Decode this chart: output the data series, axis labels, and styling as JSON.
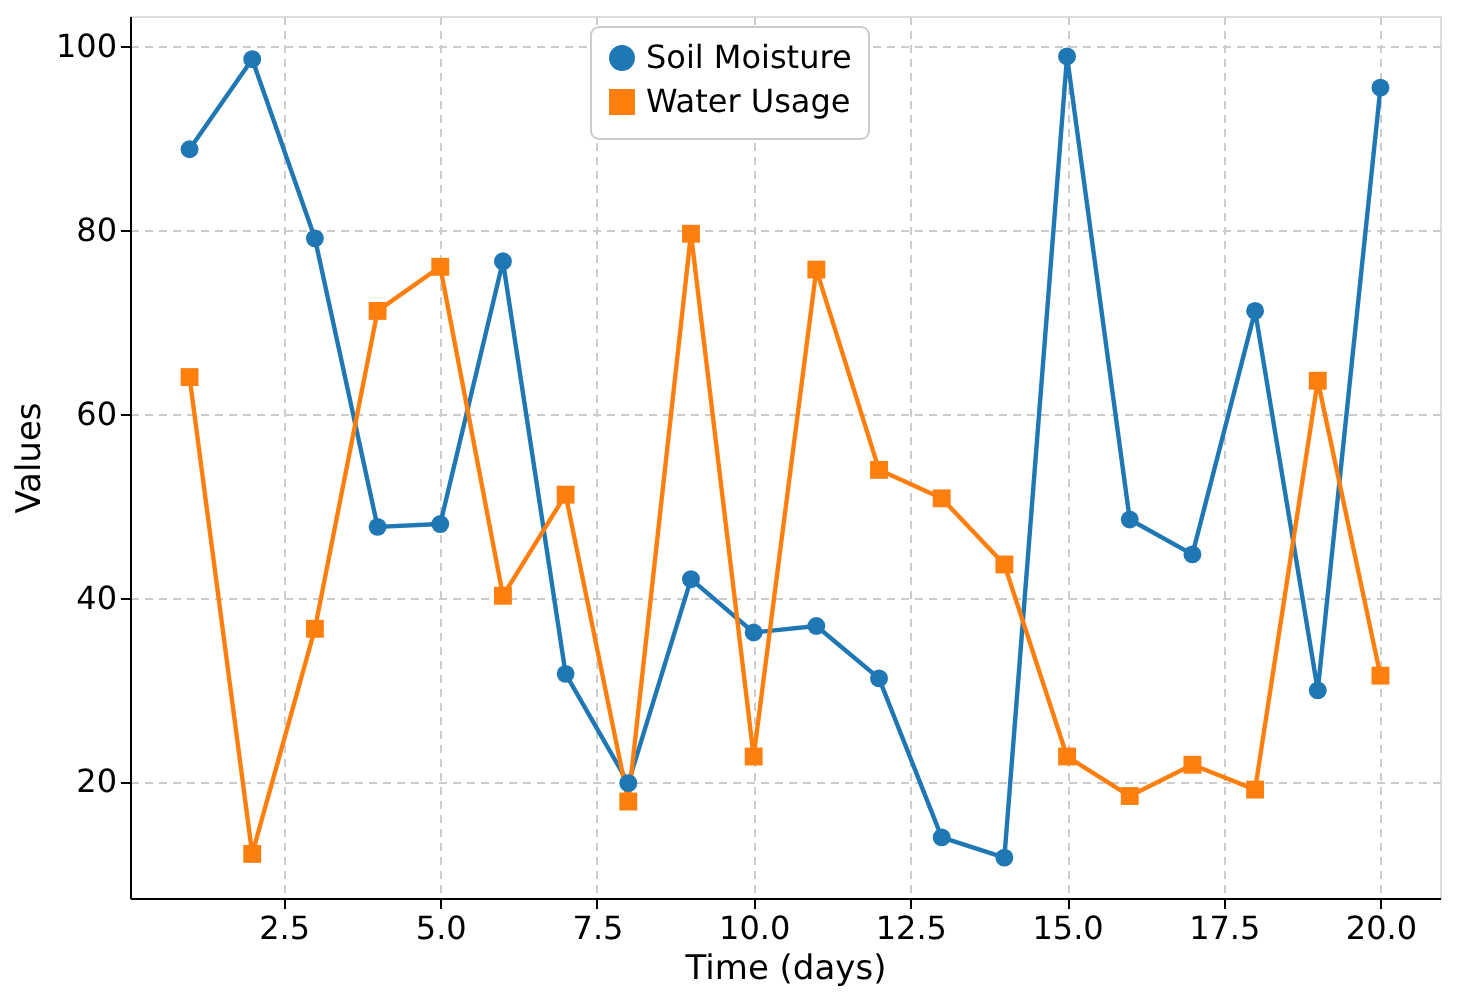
{
  "chart_data": {
    "type": "line",
    "xlabel": "Time (days)",
    "ylabel": "Values",
    "x": [
      1,
      2,
      3,
      4,
      5,
      6,
      7,
      8,
      9,
      10,
      11,
      12,
      13,
      14,
      15,
      16,
      17,
      18,
      19,
      20
    ],
    "series": [
      {
        "name": "Soil Moisture",
        "color": "#1f77b4",
        "marker": "circle",
        "values": [
          88.8,
          98.6,
          79.1,
          47.7,
          48,
          76.6,
          31.7,
          19.8,
          42,
          36.2,
          36.9,
          31.2,
          13.9,
          11.7,
          98.9,
          48.5,
          44.7,
          71.2,
          29.9,
          95.5
        ]
      },
      {
        "name": "Water Usage",
        "color": "#ff7f0e",
        "marker": "square",
        "values": [
          64,
          12.1,
          36.6,
          71.2,
          76,
          40.2,
          51.2,
          17.8,
          79.6,
          22.7,
          75.7,
          53.9,
          50.8,
          43.6,
          22.7,
          18.4,
          21.8,
          19.1,
          63.6,
          31.5
        ]
      }
    ],
    "xlim": [
      0.05,
      20.95
    ],
    "xticks": [
      2.5,
      {
        "value": 5,
        "label": "5.0"
      },
      7.5,
      {
        "value": 10,
        "label": "10.0"
      },
      12.5,
      {
        "value": 15,
        "label": "15.0"
      },
      17.5,
      {
        "value": 20,
        "label": "20.0"
      }
    ],
    "ylim": [
      7.3,
      103.3
    ],
    "yticks": [
      20,
      40,
      60,
      80,
      100
    ],
    "grid": true,
    "legend": "top",
    "line_style": "solid"
  }
}
